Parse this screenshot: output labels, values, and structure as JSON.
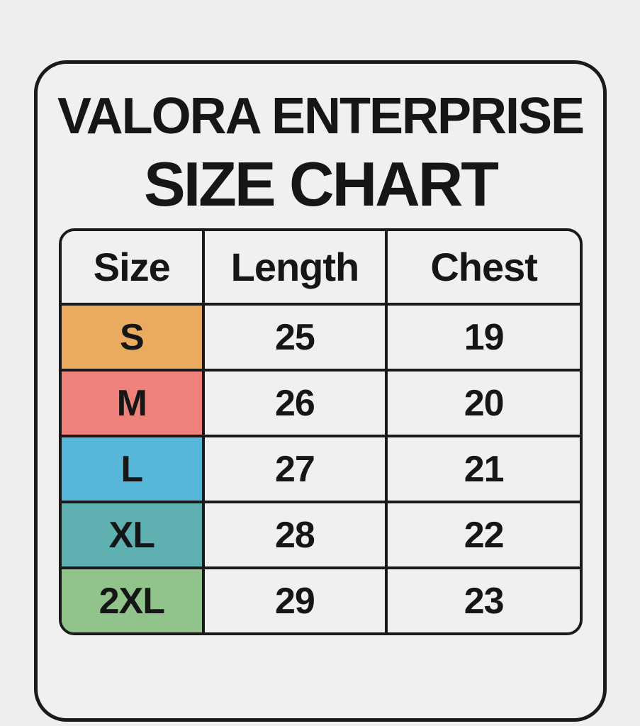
{
  "header": {
    "brand": "VALORA ENTERPRISE",
    "title": "SIZE CHART"
  },
  "table": {
    "columns": [
      "Size",
      "Length",
      "Chest"
    ],
    "rows": [
      {
        "size": "S",
        "length": "25",
        "chest": "19",
        "color": "#eaaa5f"
      },
      {
        "size": "M",
        "length": "26",
        "chest": "20",
        "color": "#ee827a"
      },
      {
        "size": "L",
        "length": "27",
        "chest": "21",
        "color": "#58b7d9"
      },
      {
        "size": "XL",
        "length": "28",
        "chest": "22",
        "color": "#5fb0b0"
      },
      {
        "size": "2XL",
        "length": "29",
        "chest": "23",
        "color": "#90c48b"
      }
    ]
  },
  "chart_data": {
    "type": "table",
    "title": "VALORA ENTERPRISE SIZE CHART",
    "columns": [
      "Size",
      "Length",
      "Chest"
    ],
    "rows": [
      [
        "S",
        25,
        19
      ],
      [
        "M",
        26,
        20
      ],
      [
        "L",
        27,
        21
      ],
      [
        "XL",
        28,
        22
      ],
      [
        "2XL",
        29,
        23
      ]
    ],
    "row_colors": [
      "#eaaa5f",
      "#ee827a",
      "#58b7d9",
      "#5fb0b0",
      "#90c48b"
    ]
  },
  "colors": {
    "page_background": "#efeeec",
    "card_background": "#f1f0ee",
    "border": "#1a1a1a",
    "text": "#161616"
  }
}
